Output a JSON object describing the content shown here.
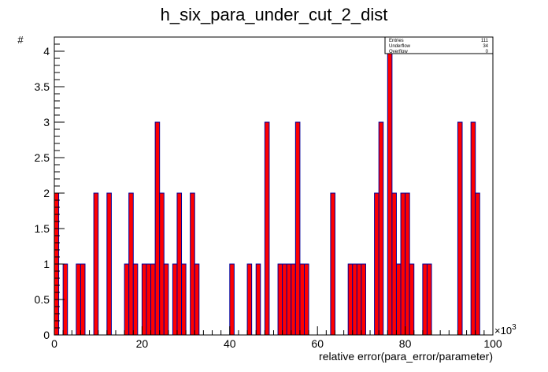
{
  "colors": {
    "fill": "#ff0000",
    "line": "#000099",
    "frame": "#000000"
  },
  "stats": [
    {
      "label": "Entries",
      "value": "111"
    },
    {
      "label": "Underflow",
      "value": "34"
    },
    {
      "label": "Overflow",
      "value": "0"
    }
  ],
  "chart_data": {
    "type": "bar",
    "title": "h_six_para_under_cut_2_dist",
    "xlabel": "relative error(para_error/parameter)",
    "ylabel": "#",
    "x_multiplier": "×10",
    "x_multiplier_exp": "3",
    "xlim": [
      0,
      100
    ],
    "ylim": [
      0,
      4.2
    ],
    "bin_width": 1,
    "x_ticks": [
      "0",
      "20",
      "40",
      "60",
      "80",
      "100"
    ],
    "y_ticks": [
      "0",
      "0.5",
      "1",
      "1.5",
      "2",
      "2.5",
      "3",
      "3.5",
      "4"
    ],
    "x_values": [
      0,
      1,
      2,
      3,
      4,
      5,
      6,
      7,
      8,
      9,
      10,
      11,
      12,
      13,
      14,
      15,
      16,
      17,
      18,
      19,
      20,
      21,
      22,
      23,
      24,
      25,
      26,
      27,
      28,
      29,
      30,
      31,
      32,
      33,
      34,
      35,
      36,
      37,
      38,
      39,
      40,
      41,
      42,
      43,
      44,
      45,
      46,
      47,
      48,
      49,
      50,
      51,
      52,
      53,
      54,
      55,
      56,
      57,
      58,
      59,
      60,
      61,
      62,
      63,
      64,
      65,
      66,
      67,
      68,
      69,
      70,
      71,
      72,
      73,
      74,
      75,
      76,
      77,
      78,
      79,
      80,
      81,
      82,
      83,
      84,
      85,
      86,
      87,
      88,
      89,
      90,
      91,
      92,
      93,
      94,
      95,
      96,
      97,
      98,
      99
    ],
    "values": [
      2,
      0,
      1,
      0,
      0,
      1,
      1,
      0,
      0,
      2,
      0,
      0,
      2,
      0,
      0,
      0,
      1,
      2,
      1,
      0,
      1,
      1,
      1,
      3,
      2,
      1,
      0,
      1,
      2,
      1,
      0,
      2,
      1,
      0,
      0,
      0,
      0,
      0,
      0,
      0,
      1,
      0,
      0,
      0,
      1,
      0,
      1,
      0,
      3,
      0,
      0,
      1,
      1,
      1,
      1,
      3,
      1,
      1,
      0,
      0,
      0,
      0,
      0,
      2,
      0,
      0,
      0,
      1,
      1,
      1,
      1,
      0,
      0,
      2,
      3,
      0,
      4,
      2,
      1,
      2,
      2,
      1,
      0,
      0,
      1,
      1,
      0,
      0,
      0,
      0,
      0,
      0,
      3,
      0,
      0,
      3,
      2,
      0,
      0,
      0
    ]
  }
}
